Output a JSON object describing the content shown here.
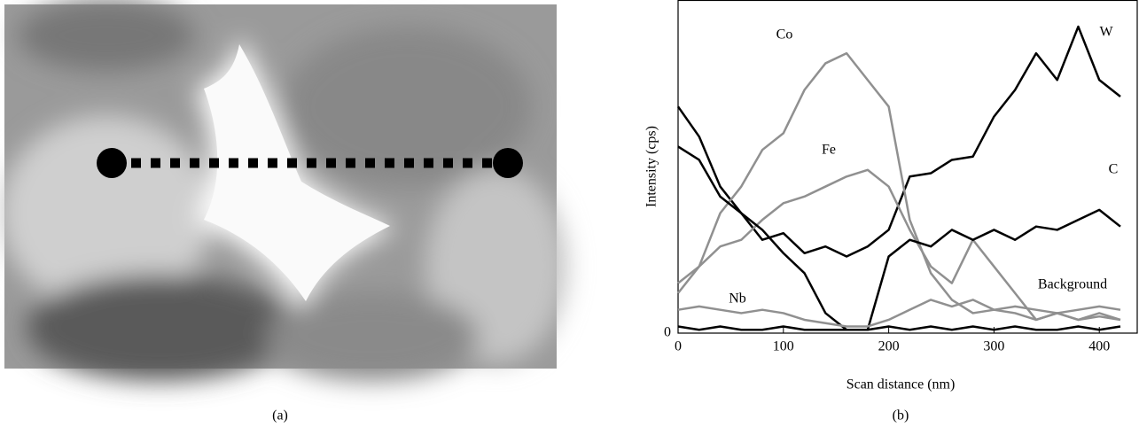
{
  "panels": [
    "(a)",
    "(b)"
  ],
  "chart_data": {
    "type": "line",
    "x_label": "Scan distance (nm)",
    "y_label": "Intensity (cps)",
    "x": [
      0,
      20,
      40,
      60,
      80,
      100,
      120,
      140,
      160,
      180,
      200,
      220,
      240,
      260,
      280,
      300,
      320,
      340,
      360,
      380,
      400,
      420
    ],
    "xlim": [
      0,
      436
    ],
    "xticks": [
      0,
      100,
      200,
      300,
      400
    ],
    "ylim": [
      0,
      100
    ],
    "yticks": [
      0
    ],
    "series": [
      {
        "name": "W",
        "color": "#000000",
        "values": [
          68,
          59,
          44,
          36,
          28,
          30,
          24,
          26,
          23,
          26,
          31,
          47,
          48,
          52,
          53,
          65,
          73,
          84,
          76,
          92,
          76,
          71
        ]
      },
      {
        "name": "Co",
        "color": "#909090",
        "values": [
          15,
          20,
          36,
          44,
          55,
          60,
          73,
          81,
          84,
          76,
          68,
          34,
          18,
          10,
          6,
          7,
          6,
          4,
          6,
          4,
          6,
          4
        ]
      },
      {
        "name": "Fe",
        "color": "#909090",
        "values": [
          12,
          20,
          26,
          28,
          34,
          39,
          41,
          44,
          47,
          49,
          44,
          31,
          20,
          15,
          28,
          20,
          12,
          4,
          6,
          4,
          5,
          4
        ]
      },
      {
        "name": "C",
        "color": "#000000",
        "values": [
          56,
          52,
          41,
          36,
          31,
          24,
          18,
          6,
          1,
          1,
          23,
          28,
          26,
          31,
          28,
          31,
          28,
          32,
          31,
          34,
          37,
          32
        ]
      },
      {
        "name": "Nb",
        "color": "#909090",
        "values": [
          7,
          8,
          7,
          6,
          7,
          6,
          4,
          3,
          2,
          2,
          4,
          7,
          10,
          8,
          10,
          7,
          8,
          7,
          6,
          7,
          8,
          7
        ]
      },
      {
        "name": "Background",
        "color": "#000000",
        "values": [
          2,
          1,
          2,
          1,
          1,
          2,
          1,
          1,
          1,
          1,
          2,
          1,
          2,
          1,
          2,
          1,
          2,
          1,
          1,
          2,
          1,
          2
        ]
      }
    ]
  }
}
